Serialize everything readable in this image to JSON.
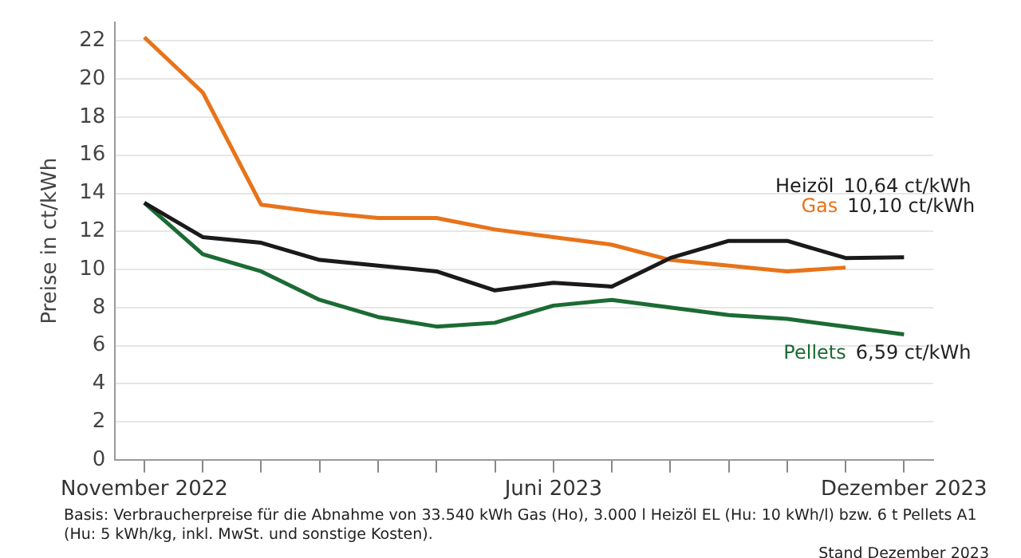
{
  "chart_data": {
    "type": "line",
    "ylabel": "Preise in ct/kWh",
    "categories": [
      "November 2022",
      null,
      null,
      null,
      null,
      null,
      null,
      "Juni 2023",
      null,
      null,
      null,
      null,
      null,
      "Dezember 2023"
    ],
    "series": [
      {
        "name": "Heizöl",
        "color": "#1a1a1a",
        "values": [
          13.5,
          11.7,
          11.4,
          10.5,
          10.2,
          9.9,
          8.9,
          9.3,
          9.1,
          10.6,
          11.5,
          11.5,
          10.6,
          10.64
        ],
        "value_labels": [
          null,
          null,
          null,
          null,
          null,
          null,
          null,
          null,
          null,
          null,
          null,
          null,
          null,
          "10,64 ct/kWh"
        ]
      },
      {
        "name": "Gas",
        "color": "#e8731a",
        "values": [
          22.2,
          19.3,
          13.4,
          13.0,
          12.7,
          12.7,
          12.1,
          11.7,
          11.3,
          10.5,
          10.2,
          9.9,
          10.1,
          null
        ],
        "value_labels": [
          null,
          null,
          null,
          null,
          null,
          null,
          null,
          null,
          null,
          null,
          null,
          null,
          "10,10 ct/kWh",
          null
        ]
      },
      {
        "name": "Pellets",
        "color": "#1b6b34",
        "values": [
          13.5,
          10.8,
          9.9,
          8.4,
          7.5,
          7.0,
          7.2,
          8.1,
          8.4,
          8.0,
          7.6,
          7.4,
          7.0,
          6.59
        ],
        "value_labels": [
          null,
          null,
          null,
          null,
          null,
          null,
          null,
          null,
          null,
          null,
          null,
          null,
          null,
          "6,59 ct/kWh"
        ]
      }
    ],
    "ylim": [
      0,
      23
    ],
    "yticks": [
      0,
      2,
      4,
      6,
      8,
      10,
      12,
      14,
      16,
      18,
      20,
      22
    ],
    "grid": "y",
    "legend": false,
    "marker": "none",
    "line_style": "solid",
    "annotations": [
      "Basis: Verbraucherpreise für die Abnahme von 33.540 kWh Gas (Ho), 3.000 l Heizöl EL (Hu: 10 kWh/l) bzw. 6 t Pellets A1 (Hu: 5 kWh/kg, inkl. MwSt. und sonstige Kosten).",
      "Stand Dezember 2023"
    ]
  }
}
